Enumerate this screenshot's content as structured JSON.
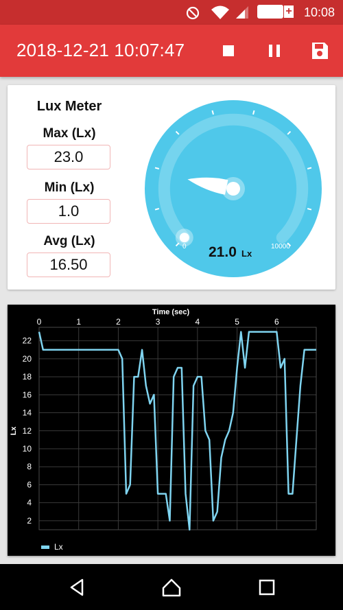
{
  "status_bar": {
    "time": "10:08",
    "battery": "81%",
    "battery_plus": "+",
    "icons": [
      "do-not-disturb-icon",
      "wifi-icon",
      "signal-icon",
      "battery-icon"
    ]
  },
  "app_bar": {
    "title": "2018-12-21 10:07:47",
    "actions": [
      "stop-icon",
      "pause-icon",
      "save-icon"
    ],
    "color": "#e23a3a",
    "status_color": "#c62e2e"
  },
  "meter": {
    "title": "Lux Meter",
    "max_label": "Max (Lx)",
    "max_value": "23.0",
    "min_label": "Min (Lx)",
    "min_value": "1.0",
    "avg_label": "Avg (Lx)",
    "avg_value": "16.50"
  },
  "gauge": {
    "value": 21.0,
    "value_text": "21.0",
    "unit": "Lx",
    "min_label": "0",
    "max_label": "10000",
    "color": "#4fc8ea"
  },
  "chart_data": {
    "type": "line",
    "title": "Time (sec)",
    "xlabel": "Time (sec)",
    "ylabel": "Lx",
    "xlim": [
      0,
      7
    ],
    "ylim": [
      1,
      23.5
    ],
    "x_ticks": [
      "0",
      "1",
      "2",
      "3",
      "4",
      "5",
      "6"
    ],
    "y_ticks": [
      "2",
      "4",
      "6",
      "8",
      "10",
      "12",
      "14",
      "16",
      "18",
      "20",
      "22"
    ],
    "legend": "bottom-left",
    "grid": true,
    "series": [
      {
        "name": "Lx",
        "color": "#7fd4f0",
        "x": [
          0,
          0.1,
          2.0,
          2.1,
          2.2,
          2.3,
          2.4,
          2.5,
          2.6,
          2.7,
          2.8,
          2.9,
          3.0,
          3.1,
          3.2,
          3.3,
          3.4,
          3.5,
          3.6,
          3.7,
          3.8,
          3.9,
          4.0,
          4.1,
          4.2,
          4.3,
          4.4,
          4.5,
          4.6,
          4.7,
          4.8,
          4.9,
          5.0,
          5.1,
          5.2,
          5.3,
          5.4,
          5.5,
          5.6,
          5.7,
          6.0,
          6.1,
          6.2,
          6.3,
          6.4,
          6.5,
          6.6,
          6.7,
          6.8,
          6.9,
          7.0
        ],
        "y": [
          23,
          21,
          21,
          20,
          5,
          6,
          18,
          18,
          21,
          17,
          15,
          16,
          5,
          5,
          5,
          2,
          18,
          19,
          19,
          5,
          1,
          17,
          18,
          18,
          12,
          11,
          2,
          3,
          9,
          11,
          12,
          14,
          19,
          23,
          19,
          23,
          23,
          23,
          23,
          23,
          23,
          19,
          20,
          5,
          5,
          11,
          17,
          21,
          21,
          21,
          21
        ]
      }
    ]
  },
  "nav_bar": {
    "buttons": [
      "back-icon",
      "home-icon",
      "recents-icon"
    ]
  }
}
